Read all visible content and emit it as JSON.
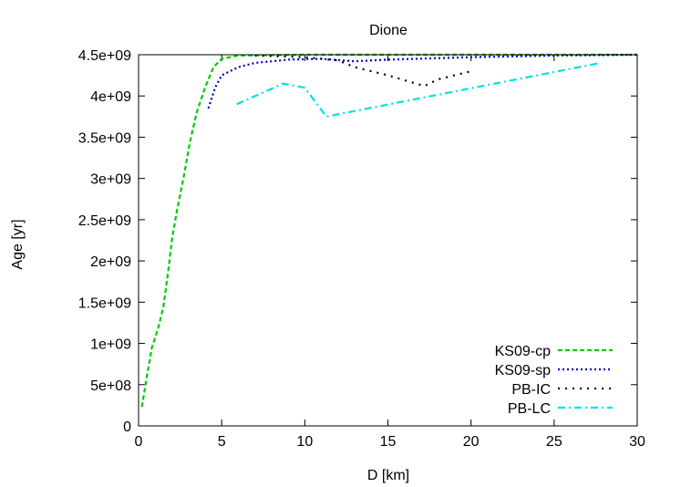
{
  "chart_data": {
    "type": "line",
    "title": "Dione",
    "xlabel": "D [km]",
    "ylabel": "Age [yr]",
    "xlim": [
      0,
      30
    ],
    "ylim": [
      0,
      4500000000
    ],
    "x_ticks": [
      0,
      5,
      10,
      15,
      20,
      25,
      30
    ],
    "x_tick_labels": [
      "0",
      "5",
      "10",
      "15",
      "20",
      "25",
      "30"
    ],
    "y_ticks": [
      0,
      500000000,
      1000000000,
      1500000000,
      2000000000,
      2500000000,
      3000000000,
      3500000000,
      4000000000,
      4500000000
    ],
    "y_tick_labels": [
      "0",
      "5e+08",
      "1e+09",
      "1.5e+09",
      "2e+09",
      "2.5e+09",
      "3e+09",
      "3.5e+09",
      "4e+09",
      "4.5e+09"
    ],
    "grid": false,
    "legend_position": "bottom-right",
    "series": [
      {
        "name": "KS09-cp",
        "color": "#00cc00",
        "dash": "dashed",
        "points": [
          [
            0.2,
            230000000
          ],
          [
            0.5,
            600000000
          ],
          [
            0.8,
            950000000
          ],
          [
            1.2,
            1200000000
          ],
          [
            1.5,
            1450000000
          ],
          [
            1.8,
            1900000000
          ],
          [
            2.0,
            2250000000
          ],
          [
            2.3,
            2600000000
          ],
          [
            2.7,
            3000000000
          ],
          [
            3.1,
            3450000000
          ],
          [
            3.5,
            3800000000
          ],
          [
            4.0,
            4100000000
          ],
          [
            4.5,
            4350000000
          ],
          [
            5.0,
            4450000000
          ],
          [
            6.0,
            4490000000
          ],
          [
            10.0,
            4500000000
          ],
          [
            20.0,
            4500000000
          ],
          [
            30.0,
            4500000000
          ]
        ]
      },
      {
        "name": "KS09-sp",
        "color": "#0000cc",
        "dash": "dotted",
        "points": [
          [
            4.2,
            3850000000
          ],
          [
            4.6,
            4100000000
          ],
          [
            5.0,
            4250000000
          ],
          [
            6.0,
            4350000000
          ],
          [
            7.0,
            4400000000
          ],
          [
            9.0,
            4440000000
          ],
          [
            11.0,
            4450000000
          ],
          [
            13.0,
            4420000000
          ],
          [
            15.0,
            4440000000
          ],
          [
            20.0,
            4470000000
          ],
          [
            25.0,
            4490000000
          ],
          [
            30.0,
            4500000000
          ]
        ]
      },
      {
        "name": "PB-IC",
        "color": "#000000",
        "dash": "dotted-sparse",
        "points": [
          [
            7.0,
            4490000000
          ],
          [
            10.0,
            4470000000
          ],
          [
            12.0,
            4430000000
          ],
          [
            13.0,
            4350000000
          ],
          [
            15.0,
            4250000000
          ],
          [
            17.2,
            4120000000
          ],
          [
            18.0,
            4200000000
          ],
          [
            20.0,
            4300000000
          ]
        ]
      },
      {
        "name": "PB-LC",
        "color": "#00e0e0",
        "dash": "dash-dot",
        "points": [
          [
            5.9,
            3900000000
          ],
          [
            8.7,
            4150000000
          ],
          [
            10.0,
            4100000000
          ],
          [
            11.3,
            3750000000
          ],
          [
            27.8,
            4400000000
          ]
        ]
      }
    ]
  }
}
